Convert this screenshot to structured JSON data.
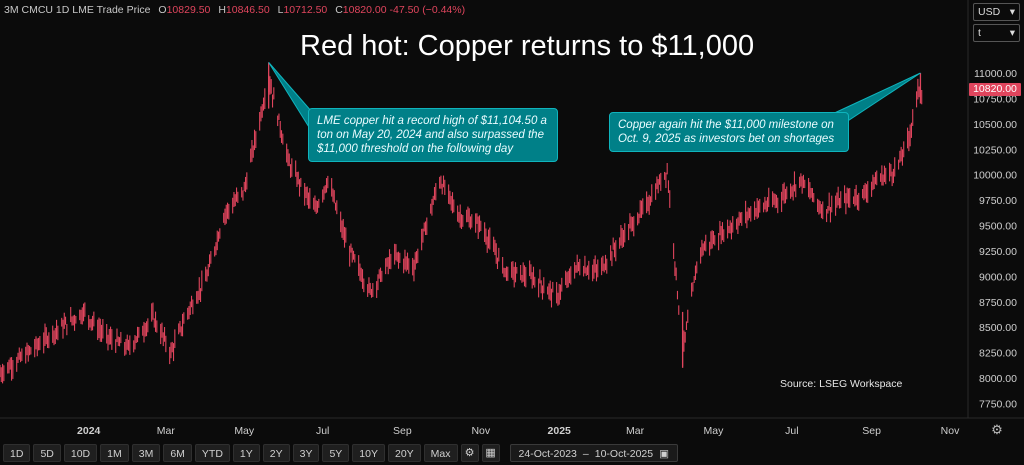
{
  "legend": {
    "symbol": "3M CMCU",
    "interval": "1D",
    "exchange": "LME",
    "price_type": "Trade Price",
    "open_label": "O",
    "open": "10829.50",
    "high_label": "H",
    "high": "10846.50",
    "low_label": "L",
    "low": "10712.50",
    "close_label": "C",
    "close": "10820.00",
    "change": "-47.50 (−0.44%)"
  },
  "currency": "USD",
  "unit": "t",
  "last_price_tag": "10820.00",
  "source": "Source: LSEG Workspace",
  "toolbar": {
    "timeframes": [
      "1D",
      "5D",
      "10D",
      "1M",
      "3M",
      "6M",
      "YTD",
      "1Y",
      "2Y",
      "3Y",
      "5Y",
      "10Y",
      "20Y",
      "Max"
    ],
    "range_start": "24-Oct-2023",
    "range_sep": "–",
    "range_end": "10-Oct-2025"
  },
  "colors": {
    "bar": "#e0455d",
    "callout_bg": "#008088",
    "background": "#0b0b0b"
  },
  "chart_data": {
    "type": "ohlc",
    "title": "Red hot: Copper returns to $11,000",
    "xlabel": "",
    "ylabel": "",
    "ylim": [
      7600,
      11150
    ],
    "yticks": [
      7750,
      8000,
      8250,
      8500,
      8750,
      9000,
      9250,
      9500,
      9750,
      10000,
      10250,
      10500,
      10750,
      11000
    ],
    "ytick_labels": [
      "7750.00",
      "8000.00",
      "8250.00",
      "8500.00",
      "8750.00",
      "9000.00",
      "9250.00",
      "9500.00",
      "9750.00",
      "10000.00",
      "10250.00",
      "10500.00",
      "10750.00",
      "11000.00"
    ],
    "xlim": [
      "2023-10-24",
      "2025-11-15"
    ],
    "xticks": [
      "2024-01-01",
      "2024-03-01",
      "2024-05-01",
      "2024-07-01",
      "2024-09-01",
      "2024-11-01",
      "2025-01-01",
      "2025-03-01",
      "2025-05-01",
      "2025-07-01",
      "2025-09-01",
      "2025-11-01"
    ],
    "xtick_labels": [
      "2024",
      "Mar",
      "May",
      "Jul",
      "Sep",
      "Nov",
      "2025",
      "Mar",
      "May",
      "Jul",
      "Sep",
      "Nov"
    ],
    "path": [
      [
        "2023-10-24",
        8050
      ],
      [
        "2023-11-15",
        8250
      ],
      [
        "2023-12-05",
        8450
      ],
      [
        "2023-12-28",
        8650
      ],
      [
        "2024-01-15",
        8400
      ],
      [
        "2024-02-01",
        8300
      ],
      [
        "2024-02-20",
        8600
      ],
      [
        "2024-03-05",
        8250
      ],
      [
        "2024-03-18",
        8650
      ],
      [
        "2024-04-02",
        9000
      ],
      [
        "2024-04-15",
        9600
      ],
      [
        "2024-05-01",
        9850
      ],
      [
        "2024-05-20",
        10950
      ],
      [
        "2024-06-05",
        10100
      ],
      [
        "2024-06-25",
        9650
      ],
      [
        "2024-07-05",
        9950
      ],
      [
        "2024-07-20",
        9300
      ],
      [
        "2024-08-07",
        8850
      ],
      [
        "2024-08-25",
        9200
      ],
      [
        "2024-09-10",
        9100
      ],
      [
        "2024-09-30",
        9950
      ],
      [
        "2024-10-15",
        9600
      ],
      [
        "2024-11-01",
        9500
      ],
      [
        "2024-11-20",
        9050
      ],
      [
        "2024-12-10",
        9000
      ],
      [
        "2024-12-30",
        8800
      ],
      [
        "2025-01-15",
        9100
      ],
      [
        "2025-02-01",
        9050
      ],
      [
        "2025-02-20",
        9400
      ],
      [
        "2025-03-10",
        9700
      ],
      [
        "2025-03-26",
        10050
      ],
      [
        "2025-04-07",
        8250
      ],
      [
        "2025-04-20",
        9250
      ],
      [
        "2025-05-10",
        9450
      ],
      [
        "2025-06-01",
        9650
      ],
      [
        "2025-06-20",
        9750
      ],
      [
        "2025-07-08",
        9950
      ],
      [
        "2025-07-25",
        9650
      ],
      [
        "2025-08-10",
        9750
      ],
      [
        "2025-08-25",
        9800
      ],
      [
        "2025-09-05",
        9950
      ],
      [
        "2025-09-20",
        10050
      ],
      [
        "2025-09-30",
        10350
      ],
      [
        "2025-10-05",
        10700
      ],
      [
        "2025-10-09",
        10900
      ],
      [
        "2025-10-10",
        10820
      ]
    ],
    "annotations": [
      {
        "date": "2024-05-20",
        "value": 11104.5,
        "text": "LME copper hit a record high of $11,104.50 a ton on May 20, 2024 and also surpassed the $11,000 threshold on the following day"
      },
      {
        "date": "2025-10-09",
        "value": 11000,
        "text": "Copper again hit the $11,000 milestone on Oct. 9, 2025 as investors bet on shortages"
      }
    ]
  }
}
